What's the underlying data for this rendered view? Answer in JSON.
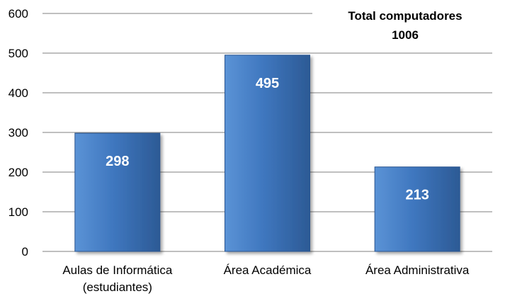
{
  "chart_data": {
    "type": "bar",
    "categories": [
      [
        "Aulas de Informática",
        "(estudiantes)"
      ],
      [
        "Área Académica"
      ],
      [
        "Área Administrativa"
      ]
    ],
    "values": [
      298,
      495,
      213
    ],
    "data_labels": [
      "298",
      "495",
      "213"
    ],
    "ylim": [
      0,
      600
    ],
    "yticks": [
      0,
      100,
      200,
      300,
      400,
      500,
      600
    ],
    "grid": true,
    "legend": "none",
    "annotation": {
      "line1": "Total computadores",
      "line2": "1006"
    },
    "colors": {
      "bar_light": "#5b93d6",
      "bar_mid": "#3f77bf",
      "bar_dark": "#2c5a95",
      "bar_stroke": "#2a5590",
      "grid": "#7f7f7f",
      "axis": "#7f7f7f"
    }
  }
}
